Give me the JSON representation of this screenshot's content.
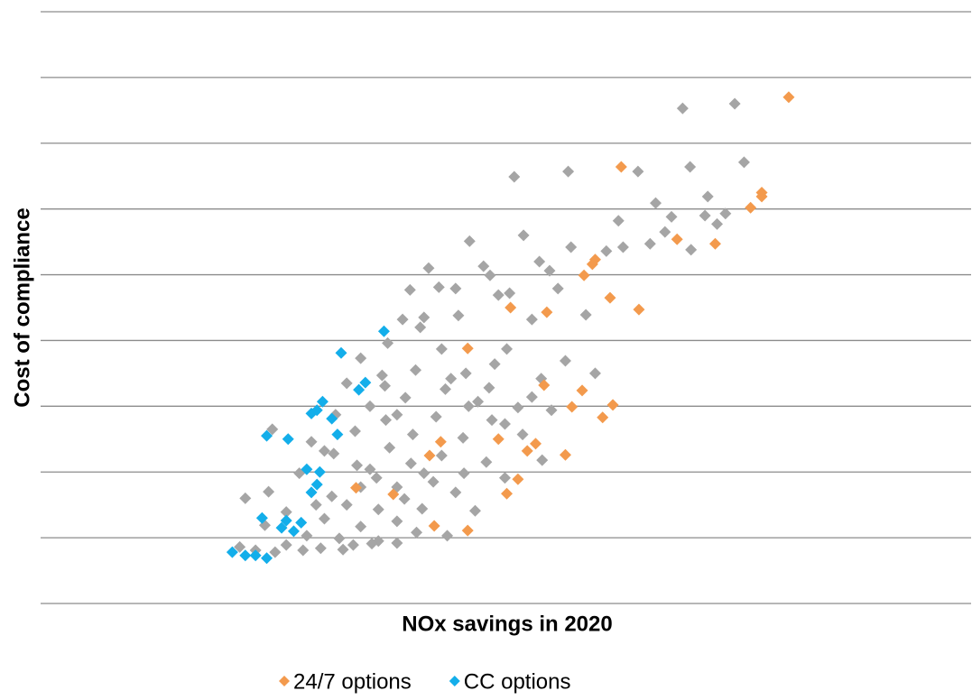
{
  "chart_data": {
    "type": "scatter",
    "xlabel": "NOx savings in 2020",
    "ylabel": "Cost of compliance",
    "xlim": [
      0,
      100
    ],
    "ylim": [
      0,
      9
    ],
    "yticks": [
      0,
      1,
      2,
      3,
      4,
      5,
      6,
      7,
      8,
      9
    ],
    "grid": true,
    "show_tick_labels": false,
    "legend": "bottom",
    "series": [
      {
        "color": "#a5a5a5",
        "x": [
          69.0,
          74.6,
          75.6,
          69.8,
          64.2,
          56.7,
          50.9,
          71.7,
          66.1,
          73.6,
          67.8,
          62.1,
          51.9,
          46.1,
          57.0,
          65.5,
          69.9,
          62.6,
          53.6,
          47.6,
          41.7,
          55.6,
          42.8,
          39.7,
          49.2,
          52.8,
          44.9,
          58.6,
          38.9,
          40.8,
          37.3,
          50.1,
          43.1,
          34.4,
          56.4,
          48.8,
          40.3,
          45.7,
          36.7,
          59.6,
          53.8,
          32.9,
          43.5,
          48.2,
          39.2,
          35.4,
          46.0,
          51.3,
          54.9,
          31.7,
          42.5,
          37.1,
          48.5,
          24.9,
          33.8,
          40.0,
          45.4,
          51.8,
          29.1,
          37.5,
          31.5,
          43.1,
          47.9,
          53.9,
          34.0,
          39.8,
          27.8,
          45.5,
          36.1,
          42.2,
          49.9,
          24.5,
          31.3,
          39.1,
          44.6,
          22.0,
          32.9,
          36.3,
          41.0,
          46.7,
          26.4,
          30.5,
          38.3,
          24.1,
          34.4,
          40.4,
          28.6,
          32.1,
          36.3,
          26.4,
          30.1,
          33.6,
          38.3,
          43.7,
          21.4,
          25.2,
          28.2,
          32.5,
          35.6,
          23.1,
          37.0,
          41.2,
          44.6,
          48.3,
          50.4,
          54.7,
          67.1,
          60.8,
          71.4,
          72.7,
          38.3,
          49.9,
          44.1,
          47.0,
          52.8,
          30.5,
          35.4,
          41.2,
          29.6,
          38.3,
          34.4
        ],
        "values": [
          7.53,
          7.6,
          6.71,
          6.64,
          6.57,
          6.57,
          6.49,
          6.19,
          6.09,
          5.93,
          5.88,
          5.82,
          5.6,
          5.51,
          5.42,
          5.47,
          5.38,
          5.42,
          5.2,
          5.13,
          5.1,
          4.79,
          4.81,
          4.77,
          4.69,
          4.32,
          4.38,
          4.39,
          4.32,
          4.2,
          3.96,
          3.87,
          3.87,
          3.73,
          3.69,
          3.64,
          3.55,
          3.5,
          3.47,
          3.5,
          3.42,
          3.35,
          3.26,
          3.28,
          3.13,
          3.0,
          3.0,
          2.98,
          2.94,
          2.87,
          2.84,
          2.79,
          2.79,
          2.65,
          2.62,
          2.57,
          2.52,
          2.57,
          2.46,
          2.37,
          2.28,
          2.25,
          2.15,
          2.18,
          2.1,
          2.13,
          1.98,
          1.98,
          1.91,
          1.85,
          1.91,
          1.7,
          1.63,
          1.59,
          1.69,
          1.6,
          1.5,
          1.43,
          1.44,
          1.41,
          1.39,
          1.29,
          1.25,
          1.19,
          1.17,
          1.08,
          1.03,
          0.99,
          0.95,
          0.89,
          0.84,
          0.89,
          0.92,
          1.03,
          0.86,
          0.78,
          0.81,
          0.82,
          0.91,
          0.81,
          3.31,
          4.35,
          4.79,
          4.99,
          4.72,
          5.06,
          5.65,
          5.36,
          5.9,
          5.77,
          2.87,
          2.73,
          3.42,
          3.07,
          3.14,
          2.32,
          2.04,
          1.98,
          1.5,
          1.77,
          1.77
        ]
      },
      {
        "name": "24/7 options",
        "color": "#f39a4d",
        "x": [
          80.4,
          62.4,
          77.5,
          77.5,
          76.3,
          68.4,
          72.5,
          59.6,
          59.3,
          58.4,
          61.2,
          64.3,
          50.5,
          54.4,
          45.9,
          54.1,
          58.2,
          57.1,
          61.5,
          60.4,
          49.2,
          43.0,
          41.8,
          53.2,
          52.3,
          56.4,
          51.3,
          50.1,
          33.9,
          37.9,
          42.3,
          45.9
        ],
        "values": [
          7.7,
          6.64,
          6.25,
          6.19,
          6.02,
          5.54,
          5.47,
          5.23,
          5.16,
          4.99,
          4.65,
          4.47,
          4.5,
          4.43,
          3.88,
          3.32,
          3.24,
          2.99,
          3.02,
          2.83,
          2.5,
          2.46,
          2.25,
          2.43,
          2.32,
          2.26,
          1.89,
          1.67,
          1.76,
          1.66,
          1.18,
          1.11
        ]
      },
      {
        "name": "CC options",
        "color": "#13aeea",
        "x": [
          36.9,
          32.3,
          34.9,
          34.2,
          30.3,
          29.1,
          29.7,
          31.3,
          31.9,
          24.3,
          26.6,
          28.6,
          30.0,
          29.7,
          29.1,
          28.0,
          26.4,
          25.9,
          27.2,
          23.8,
          20.6,
          22.0,
          23.1,
          24.3
        ],
        "values": [
          4.14,
          3.81,
          3.36,
          3.25,
          3.07,
          2.89,
          2.94,
          2.81,
          2.57,
          2.55,
          2.5,
          2.04,
          2.0,
          1.81,
          1.69,
          1.23,
          1.26,
          1.15,
          1.1,
          1.3,
          0.78,
          0.73,
          0.73,
          0.69
        ]
      }
    ]
  }
}
